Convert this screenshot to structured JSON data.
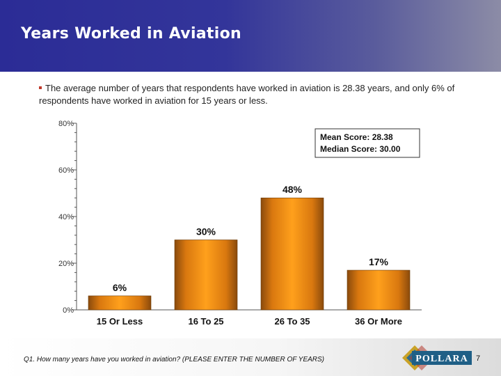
{
  "slide": {
    "title": "Years Worked in Aviation",
    "bullet": "The average number of years that respondents have worked in aviation is 28.38 years, and only 6% of respondents have worked in aviation for 15 years or less.",
    "question": "Q1.  How many years have you worked in aviation? (PLEASE ENTER THE NUMBER OF YEARS)",
    "page_number": "7",
    "logo_text": "POLLARA"
  },
  "colors": {
    "header_start": "#2b2c96",
    "bar_light": "#ffa01c",
    "bar_dark": "#8a4a0c",
    "bullet_mark": "#c0392b"
  },
  "chart_data": {
    "type": "bar",
    "categories": [
      "15 Or Less",
      "16 To 25",
      "26 To 35",
      "36 Or More"
    ],
    "values": [
      6,
      30,
      48,
      17
    ],
    "value_labels": [
      "6%",
      "30%",
      "48%",
      "17%"
    ],
    "ylim": [
      0,
      80
    ],
    "yticks": [
      0,
      20,
      40,
      60,
      80
    ],
    "ytick_labels": [
      "0%",
      "20%",
      "40%",
      "60%",
      "80%"
    ],
    "legend_box": [
      "Mean Score: 28.38",
      "Median Score: 30.00"
    ],
    "legend_position": "top-right",
    "grid": false
  }
}
